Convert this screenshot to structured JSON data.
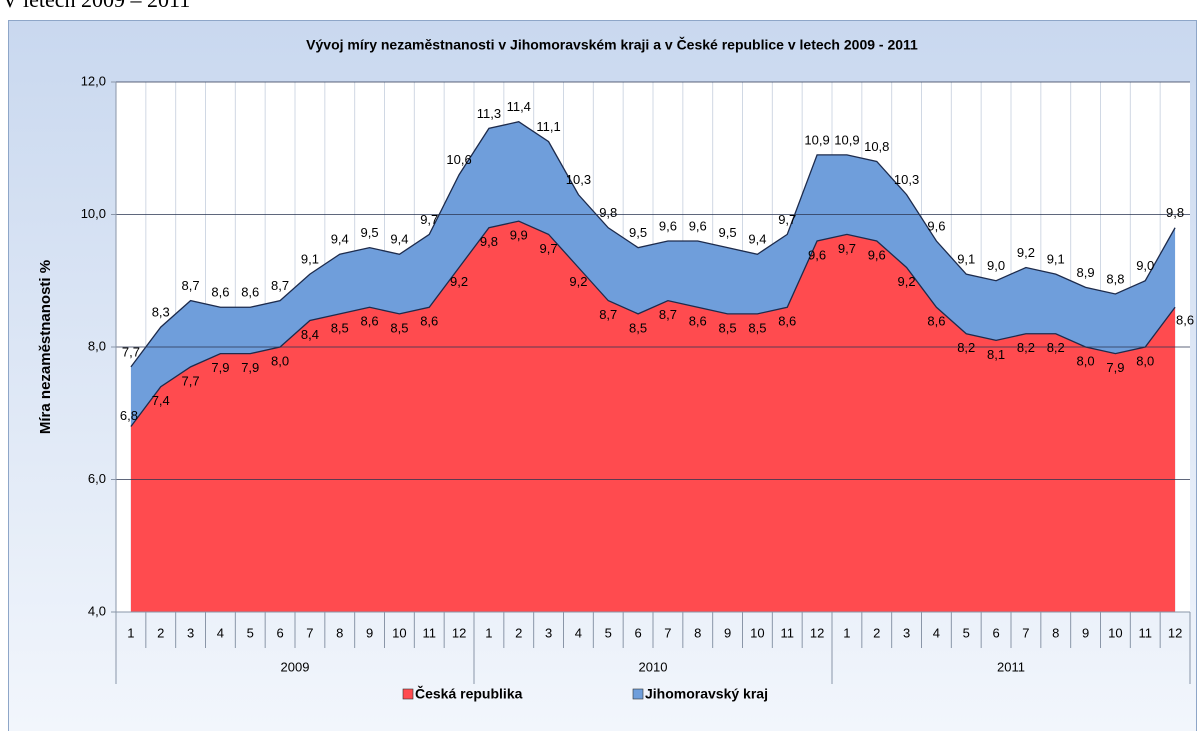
{
  "heading": "V letech 2009 – 2011",
  "chart_data": {
    "type": "area",
    "title": "Vývoj míry nezaměstnanosti v Jihomoravském kraji a  v České republice v letech 2009 - 2011",
    "y_label": "Míra nezaměstnanosti  %",
    "categories": [
      "1",
      "2",
      "3",
      "4",
      "5",
      "6",
      "7",
      "8",
      "9",
      "10",
      "11",
      "12",
      "1",
      "2",
      "3",
      "4",
      "5",
      "6",
      "7",
      "8",
      "9",
      "10",
      "11",
      "12",
      "1",
      "2",
      "3",
      "4",
      "5",
      "6",
      "7",
      "8",
      "9",
      "10",
      "11",
      "12"
    ],
    "x_groups": [
      "2009",
      "2010",
      "2011"
    ],
    "ylim": [
      4,
      12
    ],
    "yticks": [
      {
        "value": 4,
        "label": "4,0"
      },
      {
        "value": 6,
        "label": "6,0"
      },
      {
        "value": 8,
        "label": "8,0"
      },
      {
        "value": 10,
        "label": "10,0"
      },
      {
        "value": 12,
        "label": "12,0"
      }
    ],
    "grid": true,
    "legend": "bottom",
    "series": [
      {
        "name": "Jihomoravský kraj",
        "color": "#6f9edb",
        "values": [
          7.7,
          8.3,
          8.7,
          8.6,
          8.6,
          8.7,
          9.1,
          9.4,
          9.5,
          9.4,
          9.7,
          10.6,
          11.3,
          11.4,
          11.1,
          10.3,
          9.8,
          9.5,
          9.6,
          9.6,
          9.5,
          9.4,
          9.7,
          10.9,
          10.9,
          10.8,
          10.3,
          9.6,
          9.1,
          9.0,
          9.2,
          9.1,
          8.9,
          8.8,
          9.0,
          9.8
        ],
        "value_labels": [
          "7,7",
          "8,3",
          "8,7",
          "8,6",
          "8,6",
          "8,7",
          "9,1",
          "9,4",
          "9,5",
          "9,4",
          "9,7",
          "10,6",
          "11,3",
          "11,4",
          "11,1",
          "10,3",
          "9,8",
          "9,5",
          "9,6",
          "9,6",
          "9,5",
          "9,4",
          "9,7",
          "10,9",
          "10,9",
          "10,8",
          "10,3",
          "9,6",
          "9,1",
          "9,0",
          "9,2",
          "9,1",
          "8,9",
          "8,8",
          "9,0",
          "9,8"
        ]
      },
      {
        "name": "Česká republika",
        "color": "#ff4b4f",
        "values": [
          6.8,
          7.4,
          7.7,
          7.9,
          7.9,
          8.0,
          8.4,
          8.5,
          8.6,
          8.5,
          8.6,
          9.2,
          9.8,
          9.9,
          9.7,
          9.2,
          8.7,
          8.5,
          8.7,
          8.6,
          8.5,
          8.5,
          8.6,
          9.6,
          9.7,
          9.6,
          9.2,
          8.6,
          8.2,
          8.1,
          8.2,
          8.2,
          8.0,
          7.9,
          8.0,
          8.6
        ],
        "value_labels": [
          "6,8",
          "7,4",
          "7,7",
          "7,9",
          "7,9",
          "8,0",
          "8,4",
          "8,5",
          "8,6",
          "8,5",
          "8,6",
          "9,2",
          "9,8",
          "9,9",
          "9,7",
          "9,2",
          "8,7",
          "8,5",
          "8,7",
          "8,6",
          "8,5",
          "8,5",
          "8,6",
          "9,6",
          "9,7",
          "9,6",
          "9,2",
          "8,6",
          "8,2",
          "8,1",
          "8,2",
          "8,2",
          "8,0",
          "7,9",
          "8,0",
          "8,6"
        ]
      }
    ]
  }
}
